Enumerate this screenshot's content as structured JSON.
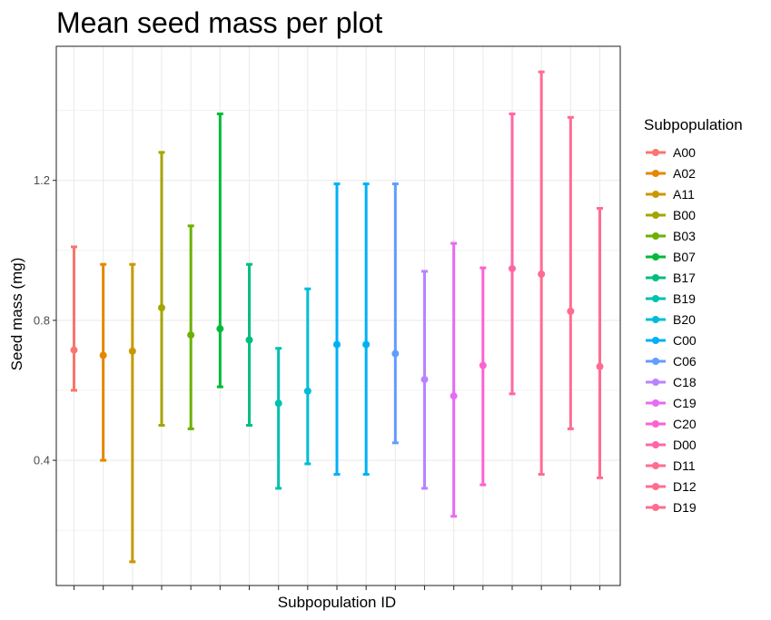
{
  "chart_data": {
    "type": "errorbar",
    "title": "Mean seed mass per plot",
    "xlabel": "Subpopulation ID",
    "ylabel": "Seed mass (mg)",
    "ylim": [
      0.0,
      1.55
    ],
    "yticks": [
      0.4,
      0.8,
      1.2
    ],
    "ytick_labels": [
      "0.4",
      "0.8",
      "1.2"
    ],
    "grid": true,
    "x_tick_labels_shown": false,
    "legend": {
      "title": "Subpopulation",
      "position": "right"
    },
    "series": [
      {
        "name": "A00",
        "color": "#F8766D",
        "mean": 0.715,
        "lower": 0.6,
        "upper": 1.01
      },
      {
        "name": "A02",
        "color": "#E58700",
        "mean": 0.7,
        "lower": 0.4,
        "upper": 0.96
      },
      {
        "name": "A11",
        "color": "#C99800",
        "mean": 0.712,
        "lower": 0.11,
        "upper": 0.96
      },
      {
        "name": "B00",
        "color": "#A3A500",
        "mean": 0.836,
        "lower": 0.5,
        "upper": 1.28
      },
      {
        "name": "B03",
        "color": "#6BB100",
        "mean": 0.758,
        "lower": 0.49,
        "upper": 1.07
      },
      {
        "name": "B07",
        "color": "#00BA38",
        "mean": 0.776,
        "lower": 0.61,
        "upper": 1.39
      },
      {
        "name": "B17",
        "color": "#00BF7D",
        "mean": 0.744,
        "lower": 0.5,
        "upper": 0.96
      },
      {
        "name": "B19",
        "color": "#00C0AF",
        "mean": 0.563,
        "lower": 0.32,
        "upper": 0.72
      },
      {
        "name": "B20",
        "color": "#00BCD8",
        "mean": 0.598,
        "lower": 0.39,
        "upper": 0.89
      },
      {
        "name": "C00",
        "color": "#00B0F6",
        "mean": 0.731,
        "lower": 0.36,
        "upper": 1.19
      },
      {
        "name": "C06",
        "color": "#619CFF",
        "mean": 0.705,
        "lower": 0.45,
        "upper": 1.19
      },
      {
        "name": "C18",
        "color": "#B983FF",
        "mean": 0.631,
        "lower": 0.32,
        "upper": 0.94
      },
      {
        "name": "C19",
        "color": "#E76BF3",
        "mean": 0.584,
        "lower": 0.24,
        "upper": 1.02
      },
      {
        "name": "C20",
        "color": "#FD61D1",
        "mean": 0.671,
        "lower": 0.33,
        "upper": 0.95
      },
      {
        "name": "D00",
        "color": "#FF67A4",
        "mean": 0.948,
        "lower": 0.59,
        "upper": 1.39
      },
      {
        "name": "D11",
        "color": "#FF6C91",
        "mean": 0.932,
        "lower": 0.36,
        "upper": 1.51
      },
      {
        "name": "D12",
        "color": "#FF6C91",
        "mean": 0.826,
        "lower": 0.49,
        "upper": 1.38
      },
      {
        "name": "D19",
        "color": "#FF6C91",
        "mean": 0.668,
        "lower": 0.35,
        "upper": 1.12
      }
    ],
    "plot_order": [
      0,
      1,
      2,
      3,
      4,
      5,
      6,
      7,
      8,
      9,
      9,
      10,
      11,
      12,
      13,
      14,
      15,
      16,
      17
    ]
  }
}
